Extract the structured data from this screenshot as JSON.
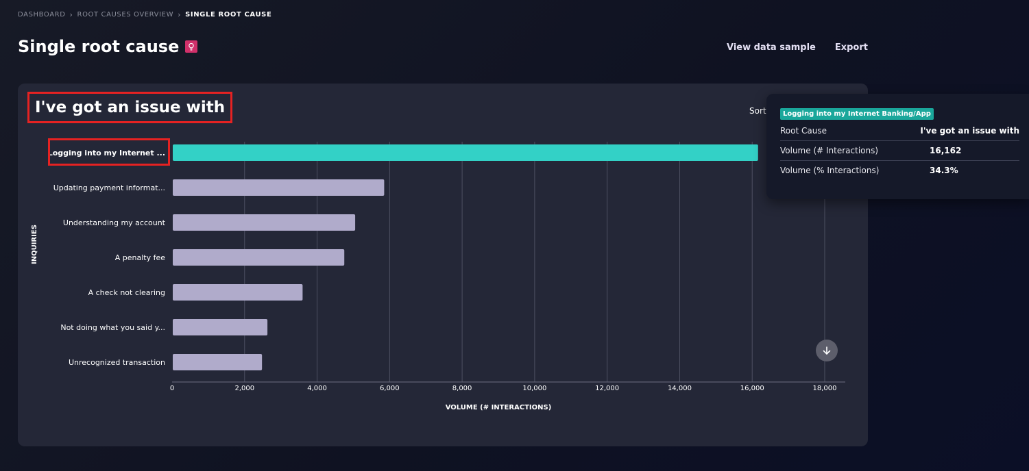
{
  "breadcrumb": {
    "items": [
      "DASHBOARD",
      "ROOT CAUSES OVERVIEW"
    ],
    "current": "SINGLE ROOT CAUSE"
  },
  "page": {
    "title": "Single root cause",
    "actions": {
      "view_data_sample": "View data sample",
      "export": "Export"
    }
  },
  "card": {
    "title": "I've got an issue with",
    "sort_label": "Sort"
  },
  "tooltip": {
    "badge": "Logging into my Internet Banking/App",
    "rows": [
      {
        "key": "Root Cause",
        "value": "I've got an issue with"
      },
      {
        "key": "Volume (# Interactions)",
        "value": "16,162"
      },
      {
        "key": "Volume (% Interactions)",
        "value": "34.3%"
      }
    ]
  },
  "colors": {
    "highlight_bar": "#33d1c6",
    "bar": "#b0abcb",
    "card_bg": "#242737",
    "annotation_box": "#e52222",
    "tooltip_badge": "#1aa79b",
    "bulb_icon_bg": "#d1306a"
  },
  "icons": {
    "title": "lightbulb-icon",
    "scroll": "arrow-down-icon"
  },
  "chart_data": {
    "type": "bar",
    "orientation": "horizontal",
    "categories": [
      "Logging into my Internet ...",
      "Updating payment informat...",
      "Understanding my account",
      "A penalty fee",
      "A check not clearing",
      "Not doing what you said y...",
      "Unrecognized transaction"
    ],
    "values": [
      16162,
      5850,
      5050,
      4750,
      3600,
      2630,
      2480
    ],
    "highlighted_index": 0,
    "xlabel": "VOLUME (# INTERACTIONS)",
    "ylabel": "INQUIRIES",
    "xlim": [
      0,
      18000
    ],
    "xticks": [
      0,
      2000,
      4000,
      6000,
      8000,
      10000,
      12000,
      14000,
      16000,
      18000
    ],
    "xtick_labels": [
      "0",
      "2,000",
      "4,000",
      "6,000",
      "8,000",
      "10,000",
      "12,000",
      "14,000",
      "16,000",
      "18,000"
    ],
    "grid": true,
    "legend": "none"
  }
}
